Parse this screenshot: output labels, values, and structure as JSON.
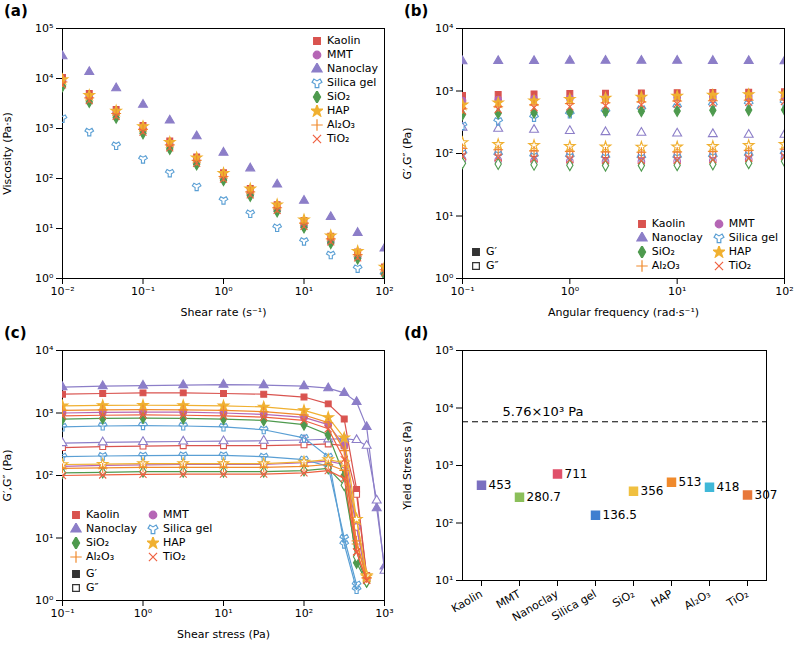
{
  "chart_data": [
    {
      "title": "(a)",
      "type": "scatter",
      "log": true,
      "grid": false,
      "legend": "top-right",
      "x_label": "Shear rate (s⁻¹)",
      "y_label": "Viscosity (Pa·s)",
      "xlim": [
        0.01,
        100
      ],
      "ylim": [
        1,
        100000
      ],
      "xticks": [
        {
          "value": 0.01,
          "label": "10⁻²"
        },
        {
          "value": 0.1,
          "label": "10⁻¹"
        },
        {
          "value": 1,
          "label": "10⁰"
        },
        {
          "value": 10,
          "label": "10¹"
        },
        {
          "value": 100,
          "label": "10²"
        }
      ],
      "yticks": [
        {
          "value": 1,
          "label": "10⁰"
        },
        {
          "value": 10,
          "label": "10¹"
        },
        {
          "value": 100,
          "label": "10²"
        },
        {
          "value": 1000,
          "label": "10³"
        },
        {
          "value": 10000,
          "label": "10⁴"
        },
        {
          "value": 100000,
          "label": "10⁵"
        }
      ],
      "x": [
        0.01,
        0.0215,
        0.0464,
        0.1,
        0.215,
        0.464,
        1,
        2.15,
        4.64,
        10,
        21.5,
        46.4,
        100
      ],
      "series": [
        {
          "name": "Kaolin",
          "color": "#d9534f",
          "marker": "square",
          "values": [
            10500,
            5000,
            2400,
            1150,
            560,
            270,
            130,
            63,
            30,
            14.5,
            7,
            3.4,
            1.7
          ]
        },
        {
          "name": "MMT",
          "color": "#b566b5",
          "marker": "circle",
          "values": [
            9000,
            4300,
            2000,
            960,
            460,
            220,
            105,
            50,
            24,
            11.5,
            5.5,
            2.7,
            1.3
          ]
        },
        {
          "name": "Nanoclay",
          "color": "#8c7ec8",
          "marker": "triangle",
          "values": [
            28000,
            13500,
            6400,
            3000,
            1450,
            700,
            330,
            160,
            76,
            36,
            17,
            8.2,
            4
          ]
        },
        {
          "name": "Silica gel",
          "color": "#5a9fd4",
          "marker": "wye",
          "values": [
            1600,
            860,
            460,
            245,
            130,
            69,
            37,
            20,
            10.5,
            5.6,
            3.0,
            1.6,
            1.2
          ]
        },
        {
          "name": "SiO₂",
          "color": "#4e9a4e",
          "marker": "diamond",
          "values": [
            7000,
            3400,
            1650,
            800,
            390,
            190,
            92,
            45,
            22,
            10.5,
            5.1,
            2.5,
            1.2
          ]
        },
        {
          "name": "HAP",
          "color": "#f0b030",
          "marker": "star",
          "values": [
            9500,
            4600,
            2250,
            1100,
            530,
            260,
            127,
            62,
            30,
            15,
            7.2,
            3.5,
            1.7
          ]
        },
        {
          "name": "Al₂O₃",
          "color": "#f08a2c",
          "marker": "plus",
          "values": [
            8500,
            4100,
            2000,
            960,
            470,
            230,
            110,
            54,
            26,
            12.8,
            6.2,
            3.0,
            1.5
          ]
        },
        {
          "name": "TiO₂",
          "color": "#ef6040",
          "marker": "times",
          "values": [
            7500,
            3600,
            1750,
            850,
            410,
            200,
            97,
            47,
            23,
            11,
            5.4,
            2.6,
            1.3
          ]
        }
      ]
    },
    {
      "title": "(b)",
      "type": "scatter",
      "log": true,
      "grid": false,
      "legend": "bottom-right",
      "x_label": "Angular frequency (rad·s⁻¹)",
      "y_label": "G′,G″ (Pa)",
      "modulus_labels": {
        "g_prime": "G′",
        "g_double_prime": "G″"
      },
      "xlim": [
        0.1,
        100
      ],
      "ylim": [
        1,
        10000
      ],
      "xticks": [
        {
          "value": 0.1,
          "label": "10⁻¹"
        },
        {
          "value": 1,
          "label": "10⁰"
        },
        {
          "value": 10,
          "label": "10¹"
        },
        {
          "value": 100,
          "label": "10²"
        }
      ],
      "yticks": [
        {
          "value": 1,
          "label": "10⁰"
        },
        {
          "value": 10,
          "label": "10¹"
        },
        {
          "value": 100,
          "label": "10²"
        },
        {
          "value": 1000,
          "label": "10³"
        },
        {
          "value": 10000,
          "label": "10⁴"
        }
      ],
      "x": [
        0.1,
        0.215,
        0.464,
        1,
        2.15,
        4.64,
        10,
        21.5,
        46.4,
        100
      ],
      "series": [
        {
          "name": "Kaolin",
          "color": "#d9534f",
          "marker": "square",
          "g_prime": [
            850,
            880,
            900,
            910,
            920,
            930,
            940,
            950,
            960,
            970
          ],
          "g_double_prime": [
            110,
            105,
            100,
            98,
            96,
            95,
            95,
            96,
            100,
            105
          ]
        },
        {
          "name": "MMT",
          "color": "#b566b5",
          "marker": "circle",
          "g_prime": [
            700,
            730,
            750,
            760,
            770,
            780,
            790,
            800,
            810,
            820
          ],
          "g_double_prime": [
            80,
            78,
            76,
            75,
            74,
            74,
            75,
            77,
            80,
            85
          ]
        },
        {
          "name": "Nanoclay",
          "color": "#8c7ec8",
          "marker": "triangle",
          "g_prime": [
            3000,
            3020,
            3030,
            3050,
            3050,
            3060,
            3050,
            3040,
            3020,
            3000
          ],
          "g_double_prime": [
            260,
            250,
            240,
            230,
            220,
            215,
            210,
            205,
            200,
            200
          ]
        },
        {
          "name": "Silica gel",
          "color": "#5a9fd4",
          "marker": "wye",
          "g_prime": [
            280,
            330,
            380,
            430,
            470,
            510,
            550,
            590,
            620,
            650
          ],
          "g_double_prime": [
            100,
            95,
            90,
            88,
            86,
            85,
            86,
            88,
            92,
            98
          ]
        },
        {
          "name": "SiO₂",
          "color": "#4e9a4e",
          "marker": "diamond",
          "g_prime": [
            420,
            440,
            450,
            460,
            470,
            475,
            480,
            490,
            495,
            500
          ],
          "g_double_prime": [
            70,
            68,
            66,
            65,
            64,
            64,
            65,
            67,
            70,
            75
          ]
        },
        {
          "name": "HAP",
          "color": "#f0b030",
          "marker": "star",
          "g_prime": [
            600,
            650,
            700,
            740,
            770,
            800,
            830,
            860,
            880,
            900
          ],
          "g_double_prime": [
            150,
            140,
            135,
            130,
            128,
            127,
            128,
            130,
            135,
            140
          ]
        },
        {
          "name": "Al₂O₃",
          "color": "#f08a2c",
          "marker": "plus",
          "g_prime": [
            520,
            560,
            600,
            630,
            650,
            670,
            690,
            700,
            710,
            720
          ],
          "g_double_prime": [
            120,
            115,
            110,
            108,
            106,
            105,
            106,
            108,
            112,
            118
          ]
        },
        {
          "name": "TiO₂",
          "color": "#ef6040",
          "marker": "times",
          "g_prime": [
            480,
            510,
            540,
            560,
            580,
            600,
            620,
            640,
            660,
            680
          ],
          "g_double_prime": [
            90,
            86,
            83,
            80,
            78,
            77,
            78,
            80,
            84,
            90
          ]
        }
      ]
    },
    {
      "title": "(c)",
      "type": "line",
      "log": true,
      "grid": false,
      "legend": "bottom-left",
      "x_label": "Shear stress (Pa)",
      "y_label": "G′,G″ (Pa)",
      "modulus_labels": {
        "g_prime": "G′",
        "g_double_prime": "G″"
      },
      "xlim": [
        0.1,
        1000
      ],
      "ylim": [
        1,
        10000
      ],
      "xticks": [
        {
          "value": 0.1,
          "label": "10⁻¹"
        },
        {
          "value": 1,
          "label": "10⁰"
        },
        {
          "value": 10,
          "label": "10¹"
        },
        {
          "value": 100,
          "label": "10²"
        },
        {
          "value": 1000,
          "label": "10³"
        }
      ],
      "yticks": [
        {
          "value": 1,
          "label": "10⁰"
        },
        {
          "value": 10,
          "label": "10¹"
        },
        {
          "value": 100,
          "label": "10²"
        },
        {
          "value": 1000,
          "label": "10³"
        },
        {
          "value": 10000,
          "label": "10⁴"
        }
      ],
      "x": [
        0.1,
        0.316,
        1,
        3.16,
        10,
        31.6,
        100,
        200,
        316,
        450,
        600,
        800,
        1000
      ],
      "series": [
        {
          "name": "Kaolin",
          "color": "#d9534f",
          "marker": "square",
          "g_prime": [
            2000,
            2050,
            2100,
            2100,
            2050,
            2000,
            1800,
            1400,
            800,
            60,
            2.5,
            null,
            null
          ],
          "g_double_prime": [
            280,
            290,
            295,
            300,
            300,
            300,
            310,
            320,
            300,
            50,
            2.5,
            null,
            null
          ]
        },
        {
          "name": "MMT",
          "color": "#b566b5",
          "marker": "circle",
          "g_prime": [
            1000,
            1020,
            1030,
            1030,
            1000,
            950,
            850,
            650,
            300,
            15,
            2.2,
            null,
            null
          ],
          "g_double_prime": [
            140,
            145,
            148,
            150,
            150,
            150,
            160,
            170,
            150,
            15,
            2.2,
            null,
            null
          ]
        },
        {
          "name": "Nanoclay",
          "color": "#8c7ec8",
          "marker": "triangle",
          "g_prime": [
            2600,
            2700,
            2750,
            2800,
            2850,
            2800,
            2700,
            2500,
            2100,
            1500,
            600,
            30,
            3.5
          ],
          "g_double_prime": [
            330,
            340,
            345,
            350,
            355,
            360,
            370,
            380,
            390,
            370,
            300,
            40,
            3
          ]
        },
        {
          "name": "Silica gel",
          "color": "#5a9fd4",
          "marker": "wye",
          "g_prime": [
            600,
            620,
            630,
            620,
            600,
            540,
            400,
            200,
            8,
            1.5,
            null,
            null,
            null
          ],
          "g_double_prime": [
            200,
            205,
            208,
            210,
            210,
            200,
            180,
            140,
            10,
            1.8,
            null,
            null,
            null
          ]
        },
        {
          "name": "SiO₂",
          "color": "#4e9a4e",
          "marker": "diamond",
          "g_prime": [
            800,
            820,
            830,
            820,
            800,
            760,
            650,
            450,
            100,
            4,
            2.0,
            null,
            null
          ],
          "g_double_prime": [
            110,
            112,
            115,
            115,
            115,
            115,
            120,
            130,
            70,
            5,
            2.0,
            null,
            null
          ]
        },
        {
          "name": "HAP",
          "color": "#f0b030",
          "marker": "star",
          "g_prime": [
            1300,
            1320,
            1330,
            1320,
            1300,
            1250,
            1100,
            850,
            400,
            20,
            2.4,
            null,
            null
          ],
          "g_double_prime": [
            150,
            152,
            155,
            155,
            155,
            155,
            165,
            180,
            160,
            20,
            2.5,
            null,
            null
          ]
        },
        {
          "name": "Al₂O₃",
          "color": "#f08a2c",
          "marker": "plus",
          "g_prime": [
            1100,
            1120,
            1130,
            1120,
            1100,
            1050,
            930,
            700,
            250,
            8,
            2.3,
            null,
            null
          ],
          "g_double_prime": [
            130,
            132,
            135,
            135,
            135,
            135,
            140,
            150,
            120,
            9,
            2.3,
            null,
            null
          ]
        },
        {
          "name": "TiO₂",
          "color": "#ef6040",
          "marker": "times",
          "g_prime": [
            900,
            920,
            930,
            920,
            900,
            860,
            760,
            560,
            180,
            6,
            2.1,
            null,
            null
          ],
          "g_double_prime": [
            100,
            102,
            104,
            105,
            105,
            105,
            110,
            120,
            90,
            6,
            2.1,
            null,
            null
          ]
        }
      ]
    },
    {
      "title": "(d)",
      "type": "scatter",
      "log": "y",
      "grid": false,
      "marker": "square",
      "data_labels": true,
      "y_label": "Yield Stress (Pa)",
      "ylim": [
        10,
        100000
      ],
      "yticks": [
        {
          "value": 10,
          "label": "10¹"
        },
        {
          "value": 100,
          "label": "10²"
        },
        {
          "value": 1000,
          "label": "10³"
        },
        {
          "value": 10000,
          "label": "10⁴"
        },
        {
          "value": 100000,
          "label": "10⁵"
        }
      ],
      "categories": [
        "Kaolin",
        "MMT",
        "Nanoclay",
        "Silica gel",
        "SiO₂",
        "HAP",
        "Al₂O₃",
        "TiO₂"
      ],
      "values": [
        453,
        280.7,
        711,
        136.5,
        356,
        513,
        418,
        307
      ],
      "colors": [
        "#7b6fc0",
        "#8bbf5a",
        "#e0506a",
        "#3f7fd0",
        "#f0c040",
        "#f08a2c",
        "#40b8d8",
        "#e8783a"
      ],
      "annotations": [
        {
          "value": 5760,
          "label": "5.76×10³ Pa",
          "line_style": "dashed"
        }
      ]
    }
  ]
}
